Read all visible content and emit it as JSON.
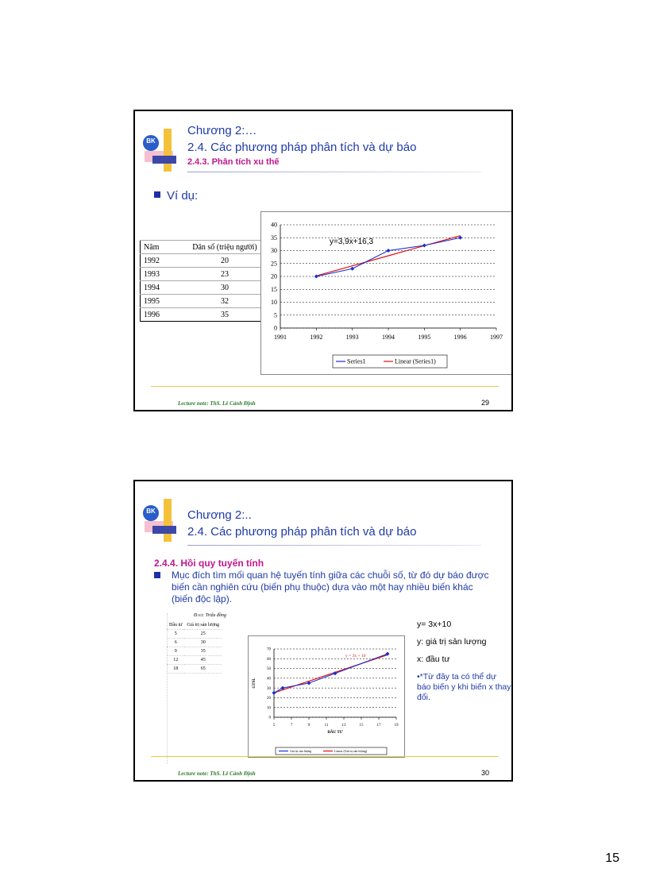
{
  "slide1": {
    "title1": "Chương 2:…",
    "title2": "2.4. Các phương pháp phân tích và dự báo",
    "subtitle": "2.4.3. Phân tích xu thế",
    "bullet": "Ví dụ:",
    "logo_text": "BK",
    "table": {
      "headers": [
        "Năm",
        "Dân số (triệu người)"
      ],
      "rows": [
        [
          "1992",
          "20"
        ],
        [
          "1993",
          "23"
        ],
        [
          "1994",
          "30"
        ],
        [
          "1995",
          "32"
        ],
        [
          "1996",
          "35"
        ]
      ]
    },
    "footer": "Lecture note: ThS. Lê Cảnh Định",
    "number": "29"
  },
  "slide2": {
    "title1": "Chương 2:..",
    "title2": "2.4. Các phương pháp phân tích và dự báo",
    "subtitle": "2.4.4. Hồi quy tuyến tính",
    "logo_text": "BK",
    "bullet": "Mục đích tìm mối quan hệ tuyến tính giữa các chuỗi số, từ đó dự báo được biến cần nghiên cứu (biến phụ thuộc) dựa vào một hay nhiều biến khác (biến độc lập).",
    "table": {
      "unit": "Đ.v.t: Triệu đồng",
      "headers": [
        "Đầu tư",
        "Giá trị sản lượng"
      ],
      "rows": [
        [
          "5",
          "25"
        ],
        [
          "6",
          "30"
        ],
        [
          "9",
          "35"
        ],
        [
          "12",
          "45"
        ],
        [
          "18",
          "65"
        ]
      ]
    },
    "notes": [
      "y= 3x+10",
      "y: giá trị sản lượng",
      "x: đầu tư",
      "•*Từ đây ta có thể dự báo biến y khi biến x thay đổi."
    ],
    "footer": "Lecture note: ThS. Lê Cảnh Định",
    "number": "30"
  },
  "page_number": "15",
  "colors": {
    "title": "#1f3aa8",
    "subtitle": "#c0188c",
    "series": "#1a2fcf",
    "trend": "#e01010"
  },
  "chart_data": [
    {
      "type": "line",
      "x": [
        1992,
        1993,
        1994,
        1995,
        1996
      ],
      "series": [
        {
          "name": "Series1",
          "values": [
            20,
            23,
            30,
            32,
            35
          ]
        },
        {
          "name": "Linear (Series1)",
          "values": [
            20.2,
            24.1,
            28,
            31.9,
            35.8
          ]
        }
      ],
      "annotation": "y=3,9x+16,3",
      "xlim": [
        1991,
        1997
      ],
      "ylim": [
        0,
        40
      ],
      "xticks": [
        "1991",
        "1992",
        "1993",
        "1994",
        "1995",
        "1996",
        "1997"
      ],
      "yticks": [
        "0",
        "5",
        "10",
        "15",
        "20",
        "25",
        "30",
        "35",
        "40"
      ],
      "grid": true,
      "legend": "bottom"
    },
    {
      "type": "scatter",
      "x": [
        5,
        6,
        9,
        12,
        18
      ],
      "series": [
        {
          "name": "Giá trị sản lượng",
          "values": [
            25,
            30,
            35,
            45,
            65
          ]
        },
        {
          "name": "Linear (Giá trị sản lượng)",
          "values": [
            25,
            28,
            37,
            46,
            64
          ]
        }
      ],
      "annotation": "y = 3x + 10",
      "xlabel": "ĐẦU TƯ",
      "ylabel": "GTSL",
      "xlim": [
        5,
        19
      ],
      "ylim": [
        0,
        70
      ],
      "xticks": [
        "5",
        "7",
        "9",
        "11",
        "13",
        "15",
        "17",
        "19"
      ],
      "yticks": [
        "0",
        "10",
        "20",
        "30",
        "40",
        "50",
        "60",
        "70"
      ],
      "grid": true,
      "legend": "bottom"
    }
  ]
}
